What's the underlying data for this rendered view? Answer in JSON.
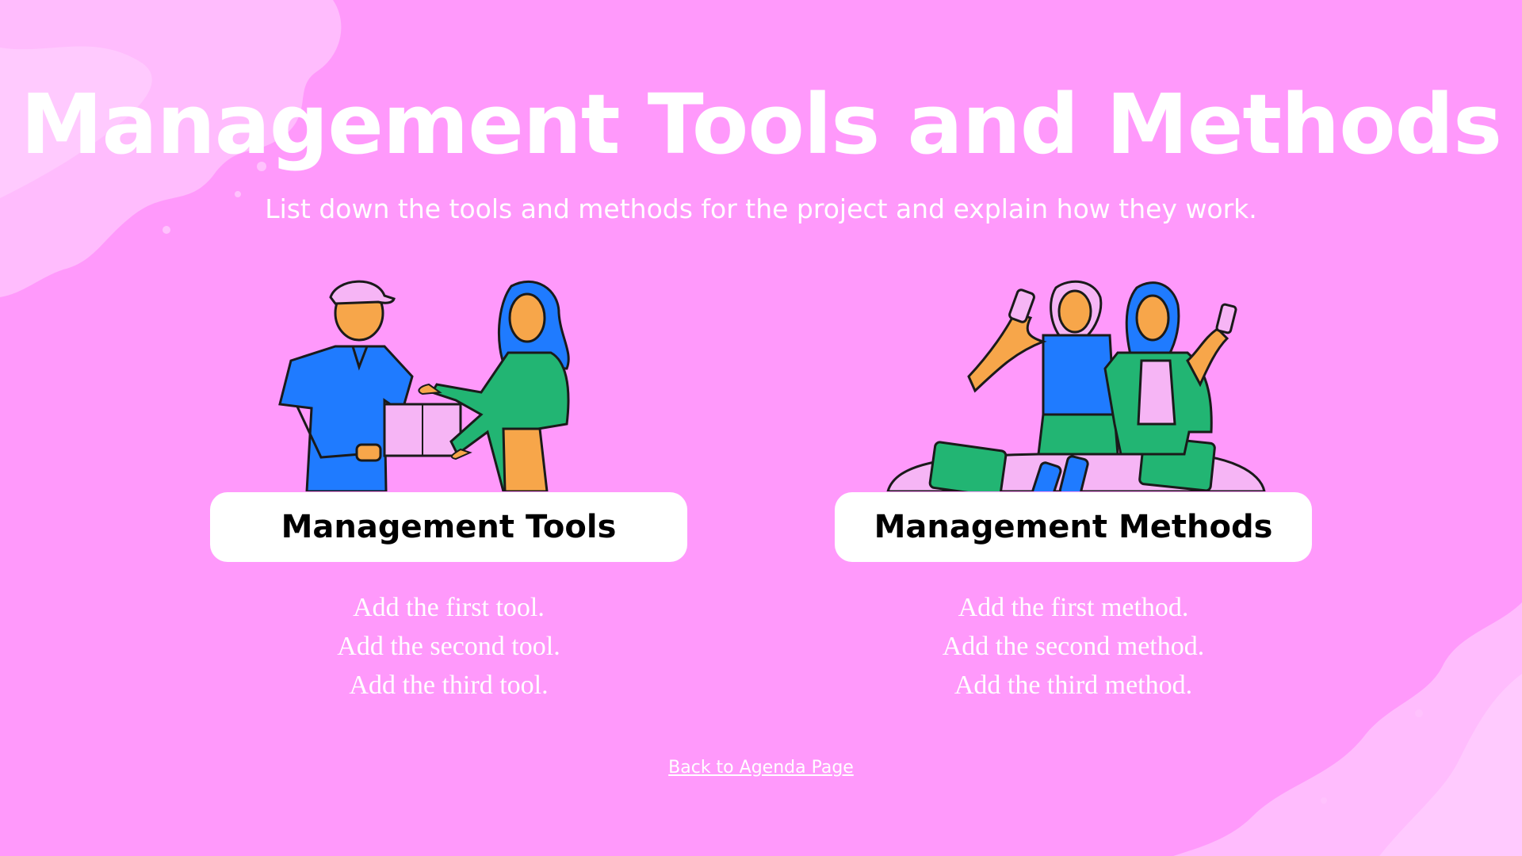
{
  "slide": {
    "title": "Management Tools and Methods",
    "subtitle": "List down the tools and methods for the project and explain how they work."
  },
  "columns": [
    {
      "heading": "Management Tools",
      "items": [
        "Add the first tool.",
        "Add the second tool.",
        "Add the third tool."
      ],
      "illustration": "delivery-handoff-illustration"
    },
    {
      "heading": "Management Methods",
      "items": [
        "Add the first method.",
        "Add the second method.",
        "Add the third method."
      ],
      "illustration": "women-with-phones-illustration"
    }
  ],
  "footer": {
    "back_link": "Back to Agenda Page"
  },
  "colors": {
    "background": "#ff99fb",
    "brush": "#ffc2fd",
    "card": "#ffffff",
    "text": "#ffffff",
    "card_text": "#000000",
    "illustration_blue": "#1f7bff",
    "illustration_green": "#22b573",
    "illustration_orange": "#f7a64a",
    "illustration_pink": "#f6b5f5"
  }
}
